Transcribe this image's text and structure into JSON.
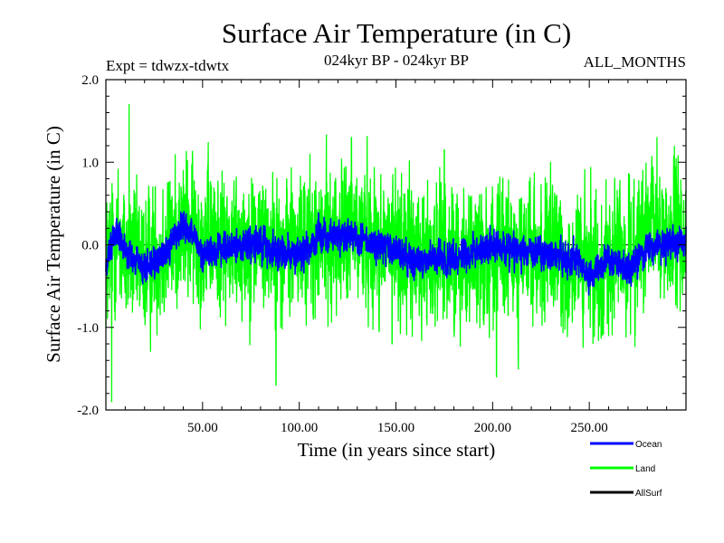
{
  "chart_data": {
    "type": "line",
    "title": "Surface Air Temperature (in C)",
    "subtitle": "024kyr BP - 024kyr BP",
    "left_label": "Expt = tdwzx-tdwtx",
    "right_label": "ALL_MONTHS",
    "xlabel": "Time (in years since start)",
    "ylabel": "Surface Air Temperature (in C)",
    "xlim": [
      0,
      300
    ],
    "ylim": [
      -2.0,
      2.0
    ],
    "xticks": [
      50,
      100,
      150,
      200,
      250
    ],
    "xtick_labels": [
      "50.00",
      "100.00",
      "150.00",
      "200.00",
      "250.00"
    ],
    "yticks": [
      -2.0,
      -1.0,
      0.0,
      1.0,
      2.0
    ],
    "ytick_labels": [
      "-2.0",
      "-1.0",
      "0.0",
      "1.0",
      "2.0"
    ],
    "zero_line": true,
    "legend_position": "bottom-right",
    "series": [
      {
        "name": "Land",
        "color": "#00ff00",
        "note": "monthly land-mean anomaly, ~3600 points; approximated by a seeded noise process",
        "amplitude": 0.55,
        "anchors": [
          [
            0,
            -0.3
          ],
          [
            5,
            0.1
          ],
          [
            10,
            -0.1
          ],
          [
            20,
            -0.25
          ],
          [
            40,
            0.2
          ],
          [
            60,
            0.0
          ],
          [
            80,
            0.05
          ],
          [
            100,
            -0.05
          ],
          [
            120,
            0.1
          ],
          [
            130,
            0.15
          ],
          [
            160,
            -0.15
          ],
          [
            180,
            -0.1
          ],
          [
            200,
            -0.1
          ],
          [
            230,
            -0.15
          ],
          [
            250,
            -0.3
          ],
          [
            270,
            -0.1
          ],
          [
            285,
            0.15
          ],
          [
            300,
            0.05
          ]
        ],
        "values_sampled": {
          "x": [
            3,
            12,
            40,
            88,
            127,
            148,
            175,
            202,
            230,
            260,
            285,
            297
          ],
          "y": [
            -1.9,
            1.7,
            0.9,
            -1.7,
            1.3,
            -1.2,
            1.15,
            -1.6,
            1.0,
            -1.1,
            1.3,
            -0.8
          ]
        }
      },
      {
        "name": "Ocean",
        "color": "#0000ff",
        "amplitude": 0.13,
        "anchors": [
          [
            0,
            -0.3
          ],
          [
            5,
            0.25
          ],
          [
            10,
            -0.1
          ],
          [
            20,
            -0.3
          ],
          [
            30,
            -0.1
          ],
          [
            40,
            0.25
          ],
          [
            50,
            -0.1
          ],
          [
            60,
            -0.05
          ],
          [
            80,
            0.0
          ],
          [
            100,
            -0.15
          ],
          [
            110,
            0.1
          ],
          [
            130,
            0.1
          ],
          [
            160,
            -0.2
          ],
          [
            180,
            -0.15
          ],
          [
            200,
            0.0
          ],
          [
            220,
            -0.1
          ],
          [
            240,
            -0.15
          ],
          [
            250,
            -0.35
          ],
          [
            260,
            -0.2
          ],
          [
            270,
            -0.3
          ],
          [
            280,
            -0.05
          ],
          [
            300,
            0.05
          ]
        ]
      },
      {
        "name": "AllSurf",
        "color": "#000000",
        "values": []
      }
    ]
  }
}
